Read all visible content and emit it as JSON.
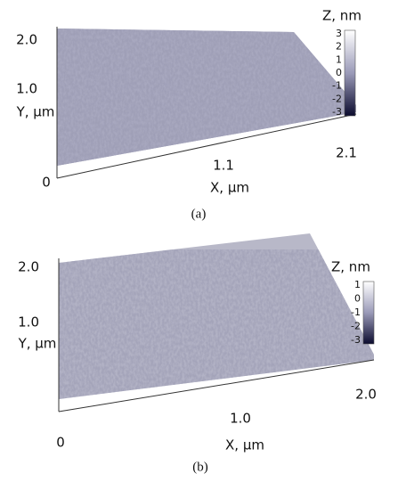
{
  "panels": [
    {
      "label": "(a)",
      "x_label": "X, µm",
      "y_label": "Y, µm",
      "z_label": "Z, nm",
      "x_ticks": [
        "0",
        "1.1",
        "2.1"
      ],
      "y_ticks": [
        "2.0",
        "1.0"
      ],
      "z_ticks": [
        "3",
        "2",
        "1",
        "0",
        "-1",
        "-2",
        "-3"
      ]
    },
    {
      "label": "(b)",
      "x_label": "X, µm",
      "y_label": "Y, µm",
      "z_label": "Z, nm",
      "x_ticks": [
        "0",
        "1.0",
        "2.0"
      ],
      "y_ticks": [
        "2.0",
        "1.0"
      ],
      "z_ticks": [
        "1",
        "0",
        "-1",
        "-2",
        "-3"
      ]
    }
  ]
}
